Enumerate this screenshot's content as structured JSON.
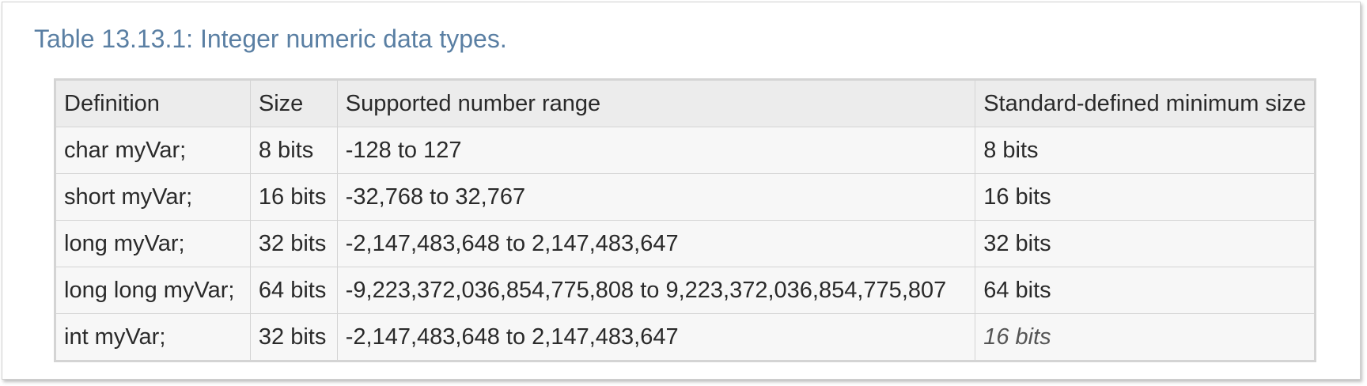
{
  "caption": "Table 13.13.1: Integer numeric data types.",
  "table": {
    "headers": [
      "Definition",
      "Size",
      "Supported number range",
      "Standard-defined minimum size"
    ],
    "rows": [
      [
        "char myVar;",
        "8 bits",
        "-128 to 127",
        "8 bits"
      ],
      [
        "short myVar;",
        "16 bits",
        "-32,768 to 32,767",
        "16 bits"
      ],
      [
        "long myVar;",
        "32 bits",
        "-2,147,483,648 to 2,147,483,647",
        "32 bits"
      ],
      [
        "long long myVar;",
        "64 bits",
        "-9,223,372,036,854,775,808 to 9,223,372,036,854,775,807",
        "64 bits"
      ],
      [
        "int myVar;",
        "32 bits",
        "-2,147,483,648 to 2,147,483,647",
        "16 bits"
      ]
    ]
  }
}
